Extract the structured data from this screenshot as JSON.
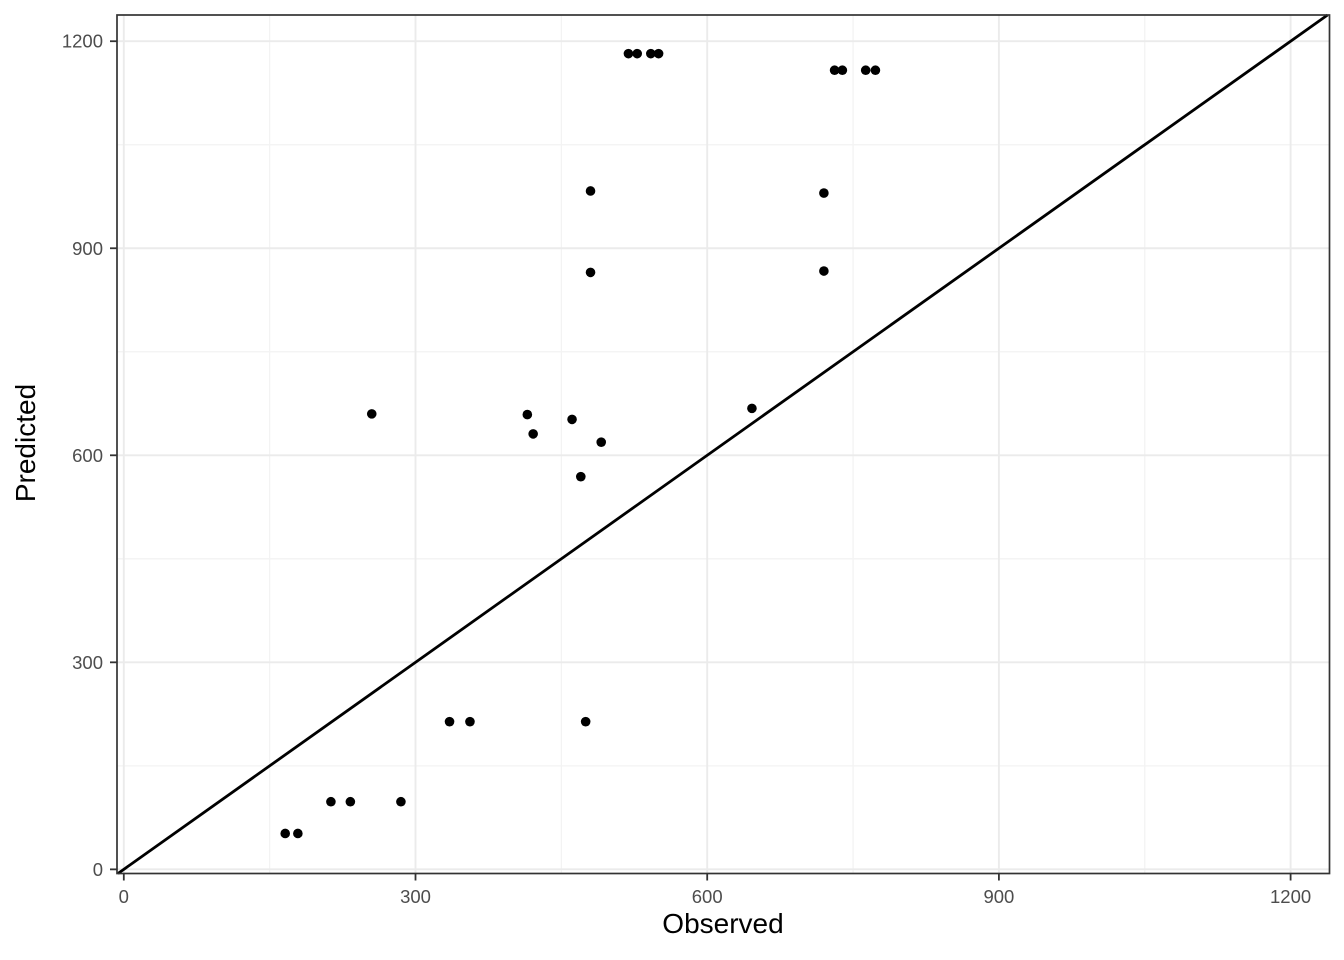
{
  "chart_data": {
    "type": "scatter",
    "title": "",
    "xlabel": "Observed",
    "ylabel": "Predicted",
    "x_ticks": [
      0,
      300,
      600,
      900,
      1200
    ],
    "y_ticks": [
      0,
      300,
      600,
      900,
      1200
    ],
    "x_minor_ticks": [
      150,
      450,
      750,
      1050
    ],
    "y_minor_ticks": [
      150,
      450,
      750,
      1050
    ],
    "xlim": [
      -7,
      1240
    ],
    "ylim": [
      -6,
      1238
    ],
    "grid": "major+minor",
    "legend": "none",
    "points": [
      [
        519,
        1182
      ],
      [
        528,
        1182
      ],
      [
        542,
        1182
      ],
      [
        550,
        1182
      ],
      [
        731,
        1158
      ],
      [
        739,
        1158
      ],
      [
        763,
        1158
      ],
      [
        773,
        1158
      ],
      [
        480,
        983
      ],
      [
        720,
        980
      ],
      [
        480,
        865
      ],
      [
        720,
        867
      ],
      [
        255,
        660
      ],
      [
        415,
        659
      ],
      [
        421,
        631
      ],
      [
        461,
        652
      ],
      [
        491,
        619
      ],
      [
        470,
        569
      ],
      [
        646,
        668
      ],
      [
        335,
        214
      ],
      [
        356,
        214
      ],
      [
        475,
        214
      ],
      [
        213,
        98
      ],
      [
        233,
        98
      ],
      [
        285,
        98
      ],
      [
        166,
        52
      ],
      [
        179,
        52
      ]
    ],
    "reference_line": {
      "type": "identity",
      "slope": 1,
      "intercept": 0
    },
    "colors": {
      "point": "#000000",
      "line": "#000000",
      "grid_major": "#ebebeb",
      "grid_minor": "#f3f3f3",
      "panel_border": "#333333",
      "tick": "#333333",
      "tick_label": "#4d4d4d",
      "axis_title": "#000000",
      "background": "#ffffff"
    }
  }
}
